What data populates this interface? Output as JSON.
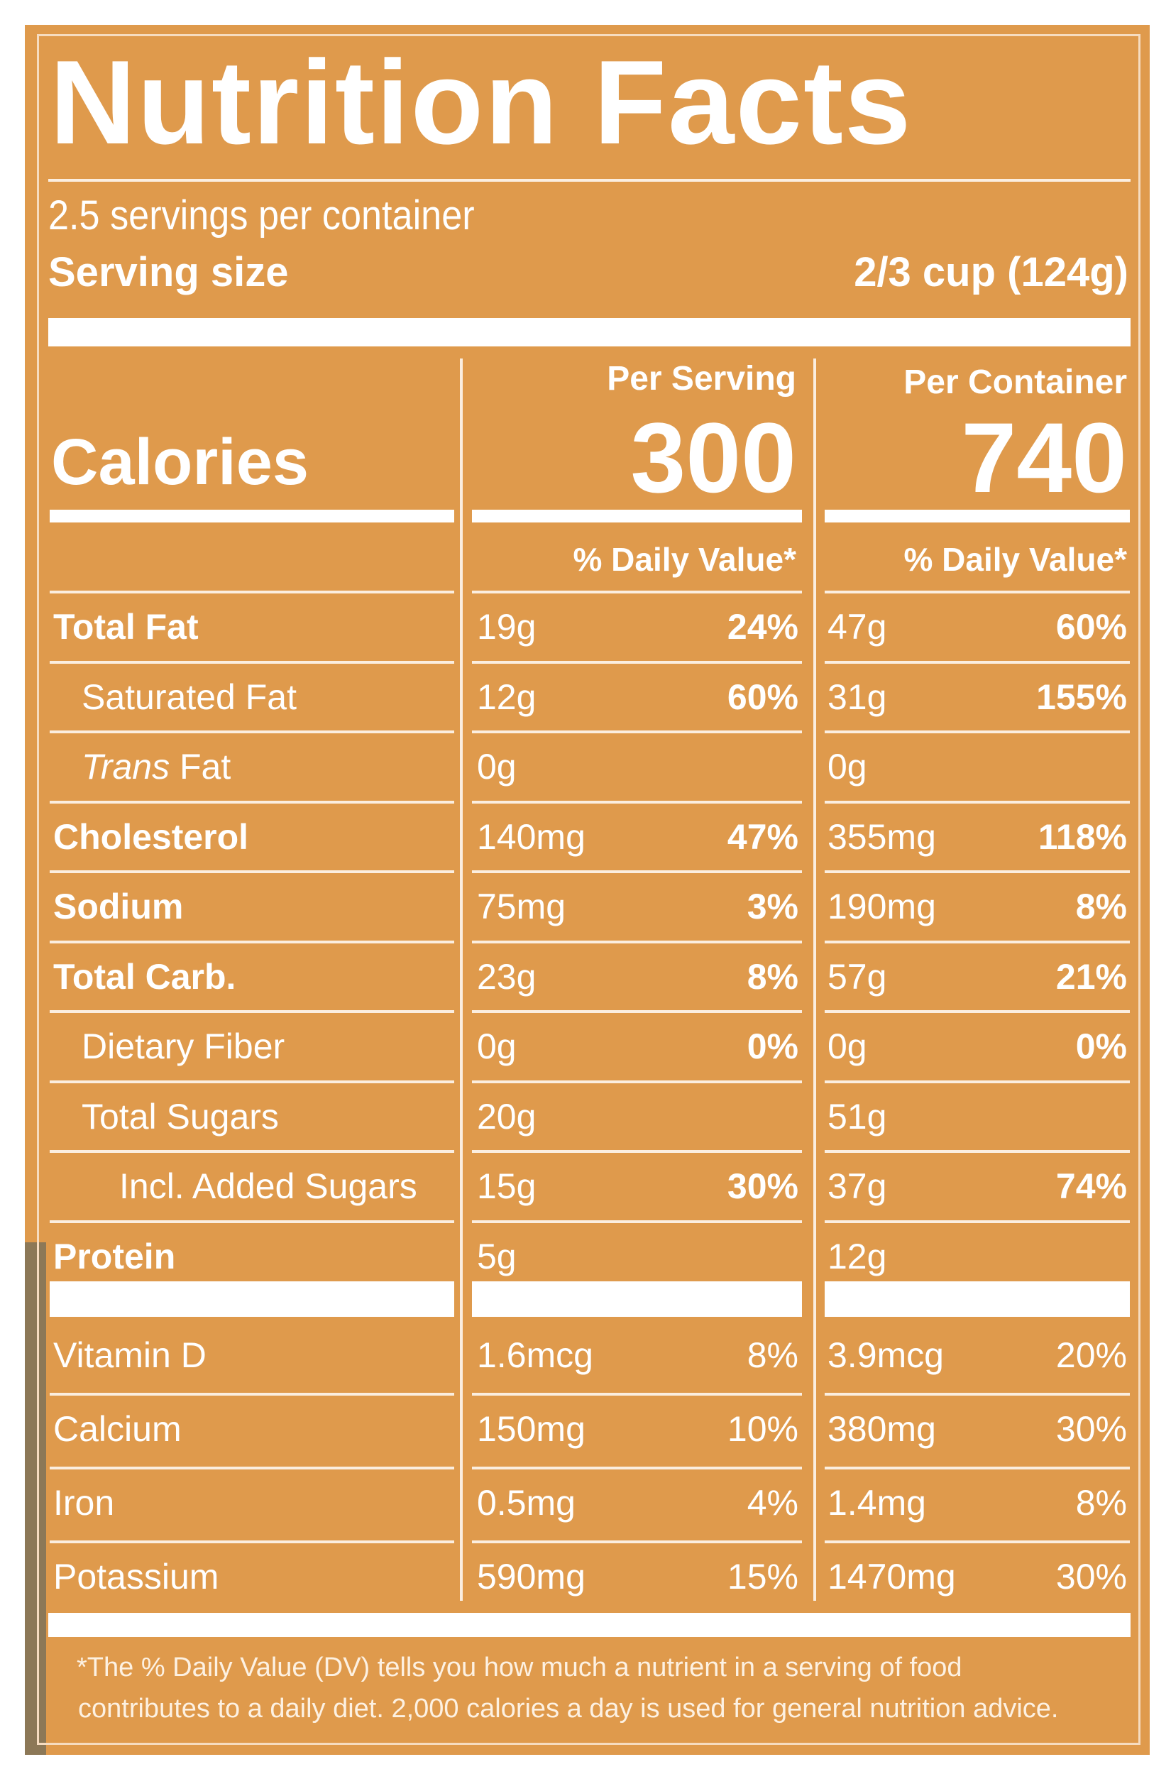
{
  "title": "Nutrition Facts",
  "servings_per_container": "2.5 servings per container",
  "serving_size_label": "Serving size",
  "serving_size_value": "2/3 cup (124g)",
  "columns": {
    "per_serving": "Per Serving",
    "per_container": "Per Container"
  },
  "calories": {
    "label": "Calories",
    "per_serving": "300",
    "per_container": "740"
  },
  "daily_value_header": "% Daily Value*",
  "nutrients": [
    {
      "name": "Total Fat",
      "serving_amount": "19g",
      "serving_dv": "24%",
      "container_amount": "47g",
      "container_dv": "60%"
    },
    {
      "name": "Saturated Fat",
      "serving_amount": "12g",
      "serving_dv": "60%",
      "container_amount": "31g",
      "container_dv": "155%"
    },
    {
      "name": "Trans",
      "name_suffix": " Fat",
      "serving_amount": "0g",
      "serving_dv": "",
      "container_amount": "0g",
      "container_dv": ""
    },
    {
      "name": "Cholesterol",
      "serving_amount": "140mg",
      "serving_dv": "47%",
      "container_amount": "355mg",
      "container_dv": "118%"
    },
    {
      "name": "Sodium",
      "serving_amount": "75mg",
      "serving_dv": "3%",
      "container_amount": "190mg",
      "container_dv": "8%"
    },
    {
      "name": "Total Carb.",
      "serving_amount": "23g",
      "serving_dv": "8%",
      "container_amount": "57g",
      "container_dv": "21%"
    },
    {
      "name": "Dietary Fiber",
      "serving_amount": "0g",
      "serving_dv": "0%",
      "container_amount": "0g",
      "container_dv": "0%"
    },
    {
      "name": "Total Sugars",
      "serving_amount": "20g",
      "serving_dv": "",
      "container_amount": "51g",
      "container_dv": ""
    },
    {
      "name": "Incl. Added Sugars",
      "serving_amount": "15g",
      "serving_dv": "30%",
      "container_amount": "37g",
      "container_dv": "74%"
    },
    {
      "name": "Protein",
      "serving_amount": "5g",
      "serving_dv": "",
      "container_amount": "12g",
      "container_dv": ""
    }
  ],
  "vitamins": [
    {
      "name": "Vitamin D",
      "serving_amount": "1.6mcg",
      "serving_dv": "8%",
      "container_amount": "3.9mcg",
      "container_dv": "20%"
    },
    {
      "name": "Calcium",
      "serving_amount": "150mg",
      "serving_dv": "10%",
      "container_amount": "380mg",
      "container_dv": "30%"
    },
    {
      "name": "Iron",
      "serving_amount": "0.5mg",
      "serving_dv": "4%",
      "container_amount": "1.4mg",
      "container_dv": "8%"
    },
    {
      "name": "Potassium",
      "serving_amount": "590mg",
      "serving_dv": "15%",
      "container_amount": "1470mg",
      "container_dv": "30%"
    }
  ],
  "footnote": [
    "*The % Daily Value (DV) tells you how much a nutrient in a serving of food",
    "contributes to a daily diet. 2,000 calories a day is used for general nutrition advice."
  ],
  "colors": {
    "panel": "#df9a4c",
    "text": "#ffffff"
  }
}
